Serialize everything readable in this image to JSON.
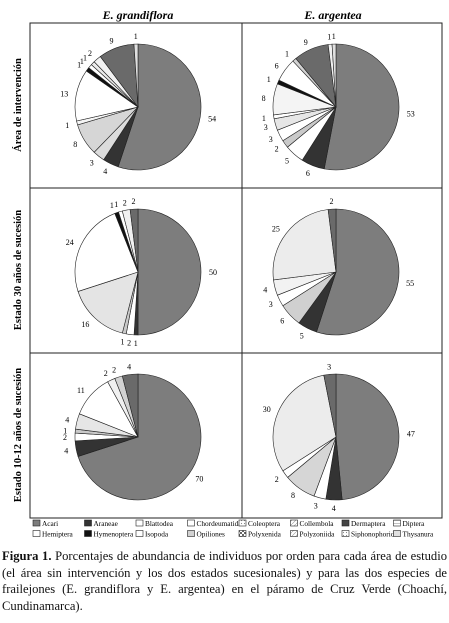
{
  "chart_data": {
    "type": "pie",
    "columns": [
      "E. grandiflora",
      "E. argentea"
    ],
    "rows": [
      "Área de intervención",
      "Estado 30 años de sucesión",
      "Estado 10-12 años de sucesión"
    ],
    "unit": "%",
    "legend": [
      {
        "name": "Acari",
        "fill": "#7d7d7d"
      },
      {
        "name": "Araneae",
        "fill": "#333333"
      },
      {
        "name": "Blattodea",
        "fill": "#ffffff"
      },
      {
        "name": "Chordeumatida",
        "fill": "#ffffff"
      },
      {
        "name": "Coleoptera",
        "fill": "#c9c9c9"
      },
      {
        "name": "Collembola",
        "fill": "#ffffff"
      },
      {
        "name": "Dermaptera",
        "fill": "#444444"
      },
      {
        "name": "Diptera",
        "fill": "#e6e6e6"
      },
      {
        "name": "Hemiptera",
        "fill": "#ffffff"
      },
      {
        "name": "Hymenoptera",
        "fill": "#111111"
      },
      {
        "name": "Isopoda",
        "fill": "#ffffff"
      },
      {
        "name": "Opiliones",
        "fill": "#d2d2d2"
      },
      {
        "name": "Polyxenida",
        "fill": "#6a6a6a"
      },
      {
        "name": "Polyzoniida",
        "fill": "#ffffff"
      },
      {
        "name": "Siphonophorida",
        "fill": "#f0f0f0"
      },
      {
        "name": "Thysanura",
        "fill": "#e0e0e0"
      }
    ],
    "pies": [
      {
        "row": 0,
        "col": 0,
        "slices": [
          {
            "label": "54",
            "value": 54,
            "fill": "#7d7d7d"
          },
          {
            "label": "4",
            "value": 4,
            "fill": "#333333"
          },
          {
            "label": "3",
            "value": 3,
            "fill": "#dcdcdc"
          },
          {
            "label": "8",
            "value": 8,
            "fill": "#d6d6d6"
          },
          {
            "label": "1",
            "value": 1,
            "fill": "#f5f5f5"
          },
          {
            "label": "13",
            "value": 13,
            "fill": "#ffffff"
          },
          {
            "label": "1",
            "value": 1,
            "fill": "#111111"
          },
          {
            "label": "1",
            "value": 1,
            "fill": "#ffffff"
          },
          {
            "label": "1",
            "value": 1,
            "fill": "#ebebeb"
          },
          {
            "label": "2",
            "value": 2,
            "fill": "#f2f2f2"
          },
          {
            "label": "9",
            "value": 9,
            "fill": "#6a6a6a"
          },
          {
            "label": "1",
            "value": 1,
            "fill": "#e0e0e0"
          }
        ]
      },
      {
        "row": 0,
        "col": 1,
        "slices": [
          {
            "label": "53",
            "value": 53,
            "fill": "#7d7d7d"
          },
          {
            "label": "6",
            "value": 6,
            "fill": "#333333"
          },
          {
            "label": "5",
            "value": 5,
            "fill": "#ffffff"
          },
          {
            "label": "2",
            "value": 2,
            "fill": "#c9c9c9"
          },
          {
            "label": "3",
            "value": 3,
            "fill": "#ffffff"
          },
          {
            "label": "3",
            "value": 3,
            "fill": "#e6e6e6"
          },
          {
            "label": "1",
            "value": 1,
            "fill": "#ffffff"
          },
          {
            "label": "8",
            "value": 8,
            "fill": "#f4f4f4"
          },
          {
            "label": "1",
            "value": 1,
            "fill": "#111111"
          },
          {
            "label": "6",
            "value": 6,
            "fill": "#ffffff"
          },
          {
            "label": "1",
            "value": 1,
            "fill": "#d2d2d2"
          },
          {
            "label": "9",
            "value": 9,
            "fill": "#6a6a6a"
          },
          {
            "label": "1",
            "value": 1,
            "fill": "#f0f0f0"
          },
          {
            "label": "1",
            "value": 1,
            "fill": "#e0e0e0"
          }
        ]
      },
      {
        "row": 1,
        "col": 0,
        "slices": [
          {
            "label": "50",
            "value": 50,
            "fill": "#7d7d7d"
          },
          {
            "label": "1",
            "value": 1,
            "fill": "#333333"
          },
          {
            "label": "2",
            "value": 2,
            "fill": "#ffffff"
          },
          {
            "label": "1",
            "value": 1,
            "fill": "#c9c9c9"
          },
          {
            "label": "16",
            "value": 16,
            "fill": "#e4e4e4"
          },
          {
            "label": "24",
            "value": 24,
            "fill": "#ffffff"
          },
          {
            "label": "1",
            "value": 1,
            "fill": "#111111"
          },
          {
            "label": "1",
            "value": 1,
            "fill": "#ffffff"
          },
          {
            "label": "2",
            "value": 2,
            "fill": "#f0f0f0"
          },
          {
            "label": "2",
            "value": 2,
            "fill": "#6a6a6a"
          }
        ]
      },
      {
        "row": 1,
        "col": 1,
        "slices": [
          {
            "label": "55",
            "value": 55,
            "fill": "#7d7d7d"
          },
          {
            "label": "5",
            "value": 5,
            "fill": "#333333"
          },
          {
            "label": "6",
            "value": 6,
            "fill": "#d0d0d0"
          },
          {
            "label": "3",
            "value": 3,
            "fill": "#ffffff"
          },
          {
            "label": "4",
            "value": 4,
            "fill": "#f2f2f2"
          },
          {
            "label": "25",
            "value": 25,
            "fill": "#ececec"
          },
          {
            "label": "2",
            "value": 2,
            "fill": "#6a6a6a"
          }
        ]
      },
      {
        "row": 2,
        "col": 0,
        "slices": [
          {
            "label": "70",
            "value": 70,
            "fill": "#7d7d7d"
          },
          {
            "label": "4",
            "value": 4,
            "fill": "#333333"
          },
          {
            "label": "2",
            "value": 2,
            "fill": "#ffffff"
          },
          {
            "label": "1",
            "value": 1,
            "fill": "#c9c9c9"
          },
          {
            "label": "4",
            "value": 4,
            "fill": "#e6e6e6"
          },
          {
            "label": "11",
            "value": 11,
            "fill": "#ffffff"
          },
          {
            "label": "2",
            "value": 2,
            "fill": "#f0f0f0"
          },
          {
            "label": "2",
            "value": 2,
            "fill": "#d2d2d2"
          },
          {
            "label": "4",
            "value": 4,
            "fill": "#6a6a6a"
          }
        ]
      },
      {
        "row": 2,
        "col": 1,
        "slices": [
          {
            "label": "47",
            "value": 47,
            "fill": "#7d7d7d"
          },
          {
            "label": "4",
            "value": 4,
            "fill": "#333333"
          },
          {
            "label": "3",
            "value": 3,
            "fill": "#ffffff"
          },
          {
            "label": "8",
            "value": 8,
            "fill": "#d6d6d6"
          },
          {
            "label": "2",
            "value": 2,
            "fill": "#ffffff"
          },
          {
            "label": "30",
            "value": 30,
            "fill": "#ececec"
          },
          {
            "label": "3",
            "value": 3,
            "fill": "#6a6a6a"
          }
        ]
      }
    ]
  },
  "caption": {
    "label": "Figura 1.",
    "text": " Porcentajes de abundancia de individuos por orden para cada área de estudio (el área sin intervención y los dos estados sucesionales) y para las dos especies de frailejones (E. grandiflora y E. argentea) en el páramo de Cruz Verde (Choachí, Cundinamarca)."
  }
}
